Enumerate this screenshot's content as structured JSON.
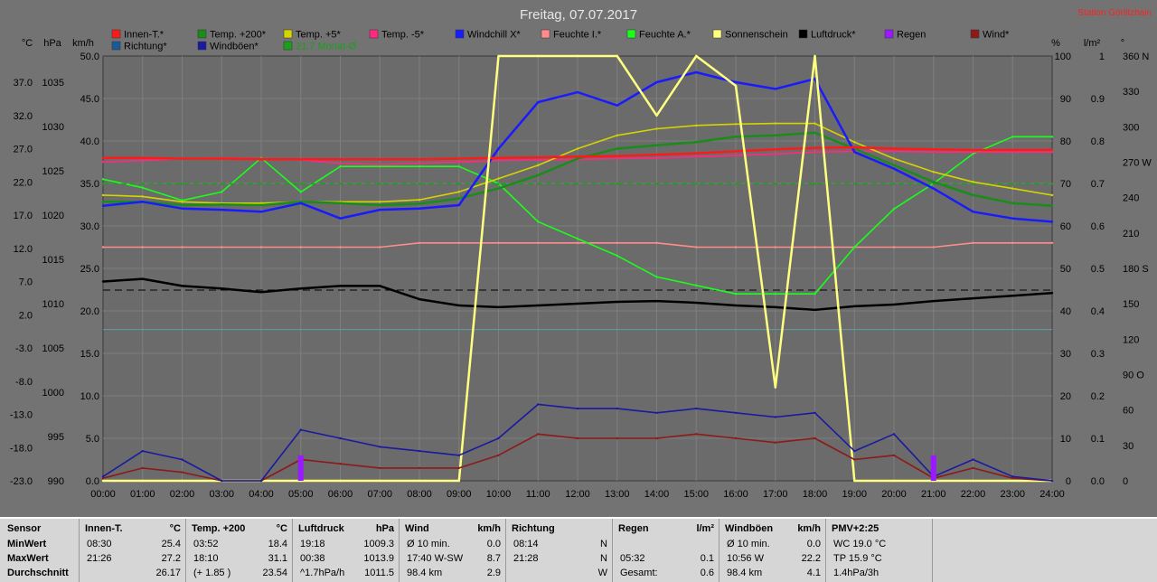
{
  "title": "Freitag, 07.07.2017",
  "station": "Station Görlitzhain",
  "units": {
    "left": [
      "°C",
      "hPa",
      "km/h"
    ],
    "right": [
      "%",
      "l/m²",
      "°"
    ]
  },
  "legend": [
    {
      "label": "Innen-T.*",
      "color": "#ff1a1a"
    },
    {
      "label": "Temp. +200*",
      "color": "#1a8c1a"
    },
    {
      "label": "Temp. +5*",
      "color": "#d4d400"
    },
    {
      "label": "Temp. -5*",
      "color": "#ff2a80"
    },
    {
      "label": "Windchill X*",
      "color": "#1a1aff"
    },
    {
      "label": "Feuchte I.*",
      "color": "#ff8c8c"
    },
    {
      "label": "Feuchte A.*",
      "color": "#1aff1a"
    },
    {
      "label": "Sonnenschein",
      "color": "#ffff80"
    },
    {
      "label": "Luftdruck*",
      "color": "#000000"
    },
    {
      "label": "Regen",
      "color": "#9a1aff"
    },
    {
      "label": "Wind*",
      "color": "#8c1a1a"
    },
    {
      "label": "Richtung*",
      "color": "#1a5a9a"
    },
    {
      "label": "Windböen*",
      "color": "#1a1aa0"
    },
    {
      "label": "21.7 Monat-Ø",
      "color": "#1aa01a"
    }
  ],
  "chart_data": {
    "type": "line",
    "x": [
      "00:00",
      "01:00",
      "02:00",
      "03:00",
      "04:00",
      "05:00",
      "06:00",
      "07:00",
      "08:00",
      "09:00",
      "10:00",
      "11:00",
      "12:00",
      "13:00",
      "14:00",
      "15:00",
      "16:00",
      "17:00",
      "18:00",
      "19:00",
      "20:00",
      "21:00",
      "22:00",
      "23:00",
      "24:00"
    ],
    "axes": {
      "temp_ticks": [
        "37.0",
        "32.0",
        "27.0",
        "22.0",
        "17.0",
        "12.0",
        "7.0",
        "2.0",
        "-3.0",
        "-8.0",
        "-13.0",
        "-18.0",
        "-23.0"
      ],
      "pressure_ticks": [
        "1035",
        "1030",
        "1025",
        "1020",
        "1015",
        "1010",
        "1005",
        "1000",
        "995",
        "990"
      ],
      "wind_ticks": [
        "50.0",
        "45.0",
        "40.0",
        "35.0",
        "30.0",
        "25.0",
        "20.0",
        "15.0",
        "10.0",
        "5.0",
        "0.0"
      ],
      "humidity_ticks": [
        "100",
        "90",
        "80",
        "70",
        "60",
        "50",
        "40",
        "30",
        "20",
        "10",
        "0"
      ],
      "rain_ticks": [
        "1",
        "0.9",
        "0.8",
        "0.7",
        "0.6",
        "0.5",
        "0.4",
        "0.3",
        "0.2",
        "0.1",
        "0.0"
      ],
      "direction_ticks": [
        "360 N",
        "330",
        "300",
        "270 W",
        "240",
        "210",
        "180 S",
        "150",
        "120",
        "90 O",
        "60",
        "30",
        "0"
      ]
    },
    "series": [
      {
        "name": "Innen-T.*",
        "unit": "°C",
        "values": [
          25.6,
          25.6,
          25.5,
          25.5,
          25.4,
          25.4,
          25.4,
          25.4,
          25.4,
          25.5,
          25.6,
          25.7,
          25.8,
          25.9,
          26.1,
          26.3,
          26.6,
          26.9,
          27.1,
          27.2,
          27.0,
          26.9,
          26.8,
          26.8,
          26.8
        ]
      },
      {
        "name": "Temp. +200*",
        "unit": "°C",
        "values": [
          19.0,
          19.0,
          18.5,
          18.6,
          18.5,
          19.0,
          18.8,
          18.5,
          18.7,
          19.5,
          21.0,
          23.0,
          25.5,
          27.0,
          27.5,
          28.0,
          28.8,
          29.0,
          29.4,
          27.0,
          24.5,
          22.0,
          20.0,
          18.8,
          18.4
        ]
      },
      {
        "name": "Temp. +5*",
        "unit": "°C",
        "values": [
          20.0,
          19.8,
          19.0,
          18.8,
          18.8,
          19.0,
          19.0,
          19.0,
          19.3,
          20.5,
          22.5,
          24.5,
          27.0,
          29.0,
          30.0,
          30.5,
          30.7,
          30.8,
          30.8,
          28.0,
          25.5,
          23.5,
          22.0,
          21.0,
          20.0
        ]
      },
      {
        "name": "Temp. -5*",
        "unit": "°C",
        "values": [
          25.0,
          25.2,
          25.5,
          25.6,
          25.5,
          25.3,
          24.8,
          24.6,
          24.8,
          25.0,
          25.2,
          25.3,
          25.4,
          25.5,
          25.6,
          25.8,
          26.0,
          26.2,
          26.5,
          26.6,
          26.6,
          26.5,
          26.5,
          26.5,
          26.5
        ]
      },
      {
        "name": "Windchill X*",
        "unit": "°C",
        "values": [
          18.4,
          19.0,
          18.0,
          17.8,
          17.5,
          18.8,
          16.5,
          17.8,
          18.0,
          18.5,
          27.0,
          34.0,
          35.5,
          33.5,
          37.0,
          38.5,
          37.0,
          36.0,
          37.5,
          26.5,
          24.0,
          21.0,
          17.5,
          16.5,
          16.0
        ]
      },
      {
        "name": "Feuchte I.*",
        "unit": "%",
        "values": [
          55,
          55,
          55,
          55,
          55,
          55,
          55,
          55,
          56,
          56,
          56,
          56,
          56,
          56,
          56,
          55,
          55,
          55,
          55,
          55,
          55,
          55,
          56,
          56,
          56
        ]
      },
      {
        "name": "Feuchte A.*",
        "unit": "%",
        "values": [
          71,
          69,
          66,
          68,
          76,
          68,
          74,
          74,
          74,
          74,
          70,
          61,
          57,
          53,
          48,
          46,
          44,
          44,
          44,
          55,
          64,
          70,
          77,
          81,
          81
        ]
      },
      {
        "name": "Sonnenschein",
        "unit": "%",
        "values": [
          0,
          0,
          0,
          0,
          0,
          0,
          0,
          0,
          0,
          0,
          100,
          100,
          100,
          100,
          86,
          100,
          93,
          22,
          100,
          0,
          0,
          0,
          0,
          0,
          0
        ]
      },
      {
        "name": "Luftdruck*",
        "unit": "hPa",
        "values": [
          1012.5,
          1012.8,
          1012.0,
          1011.7,
          1011.3,
          1011.7,
          1012.0,
          1012.0,
          1010.5,
          1009.8,
          1009.6,
          1009.8,
          1010.0,
          1010.2,
          1010.3,
          1010.1,
          1009.8,
          1009.6,
          1009.3,
          1009.7,
          1009.9,
          1010.3,
          1010.6,
          1010.9,
          1011.2
        ]
      },
      {
        "name": "Windböen*",
        "unit": "km/h",
        "values": [
          0.5,
          3.5,
          2.5,
          0,
          0,
          6.0,
          5.0,
          4.0,
          3.5,
          3.0,
          5.0,
          9.0,
          8.5,
          8.5,
          8.0,
          8.5,
          8.0,
          7.5,
          8.0,
          3.5,
          5.5,
          0.5,
          2.5,
          0.5,
          0
        ]
      },
      {
        "name": "Wind*",
        "unit": "km/h",
        "values": [
          0.3,
          1.5,
          1.0,
          0,
          0,
          2.5,
          2.0,
          1.5,
          1.5,
          1.5,
          3.0,
          5.5,
          5.0,
          5.0,
          5.0,
          5.5,
          5.0,
          4.5,
          5.0,
          2.5,
          3.0,
          0.3,
          1.5,
          0.3,
          0
        ]
      },
      {
        "name": "Regen",
        "unit": "l/m²",
        "values": [
          0,
          0,
          0,
          0,
          0,
          0.06,
          0,
          0,
          0,
          0,
          0,
          0,
          0,
          0,
          0,
          0,
          0,
          0,
          0,
          0,
          0,
          0.06,
          0,
          0,
          0
        ]
      },
      {
        "name": "21.7 Monat-Ø",
        "unit": "°C",
        "values": [
          21.7,
          21.7,
          21.7,
          21.7,
          21.7,
          21.7,
          21.7,
          21.7,
          21.7,
          21.7,
          21.7,
          21.7,
          21.7,
          21.7,
          21.7,
          21.7,
          21.7,
          21.7,
          21.7,
          21.7,
          21.7,
          21.7,
          21.7,
          21.7,
          21.7
        ]
      }
    ]
  },
  "table": {
    "row_labels": [
      "Sensor",
      "MinWert",
      "MaxWert",
      "Durchschnitt"
    ],
    "columns": [
      {
        "head": "Innen-T.",
        "unit": "°C",
        "rows": [
          [
            "08:30",
            "25.4"
          ],
          [
            "21:26",
            "27.2"
          ],
          [
            "",
            "26.17"
          ]
        ]
      },
      {
        "head": "Temp. +200",
        "unit": "°C",
        "rows": [
          [
            "03:52",
            "18.4"
          ],
          [
            "18:10",
            "31.1"
          ],
          [
            "(+ 1.85 )",
            "23.54"
          ]
        ]
      },
      {
        "head": "Luftdruck",
        "unit": "hPa",
        "rows": [
          [
            "19:18",
            "1009.3"
          ],
          [
            "00:38",
            "1013.9"
          ],
          [
            "^1.7hPa/h",
            "1011.5"
          ]
        ]
      },
      {
        "head": "Wind",
        "unit": "km/h",
        "rows": [
          [
            "Ø 10 min.",
            "0.0"
          ],
          [
            "17:40  W-SW",
            "8.7"
          ],
          [
            "98.4 km",
            "2.9"
          ]
        ]
      },
      {
        "head": "Richtung",
        "unit": "",
        "rows": [
          [
            "08:14",
            "N"
          ],
          [
            "21:28",
            "N"
          ],
          [
            "",
            "W"
          ]
        ]
      },
      {
        "head": "Regen",
        "unit": "l/m²",
        "rows": [
          [
            "",
            ""
          ],
          [
            "05:32",
            "0.1"
          ],
          [
            "Gesamt:",
            "0.6"
          ]
        ]
      },
      {
        "head": "Windböen",
        "unit": "km/h",
        "rows": [
          [
            "Ø 10 min.",
            "0.0"
          ],
          [
            "10:56    W",
            "22.2"
          ],
          [
            "98.4 km",
            "4.1"
          ]
        ]
      },
      {
        "head": "PMV+2:25",
        "unit": "",
        "rows": [
          [
            "WC 19.0 °C",
            ""
          ],
          [
            "TP 15.9 °C",
            ""
          ],
          [
            "1.4hPa/3h",
            ""
          ]
        ]
      }
    ]
  }
}
